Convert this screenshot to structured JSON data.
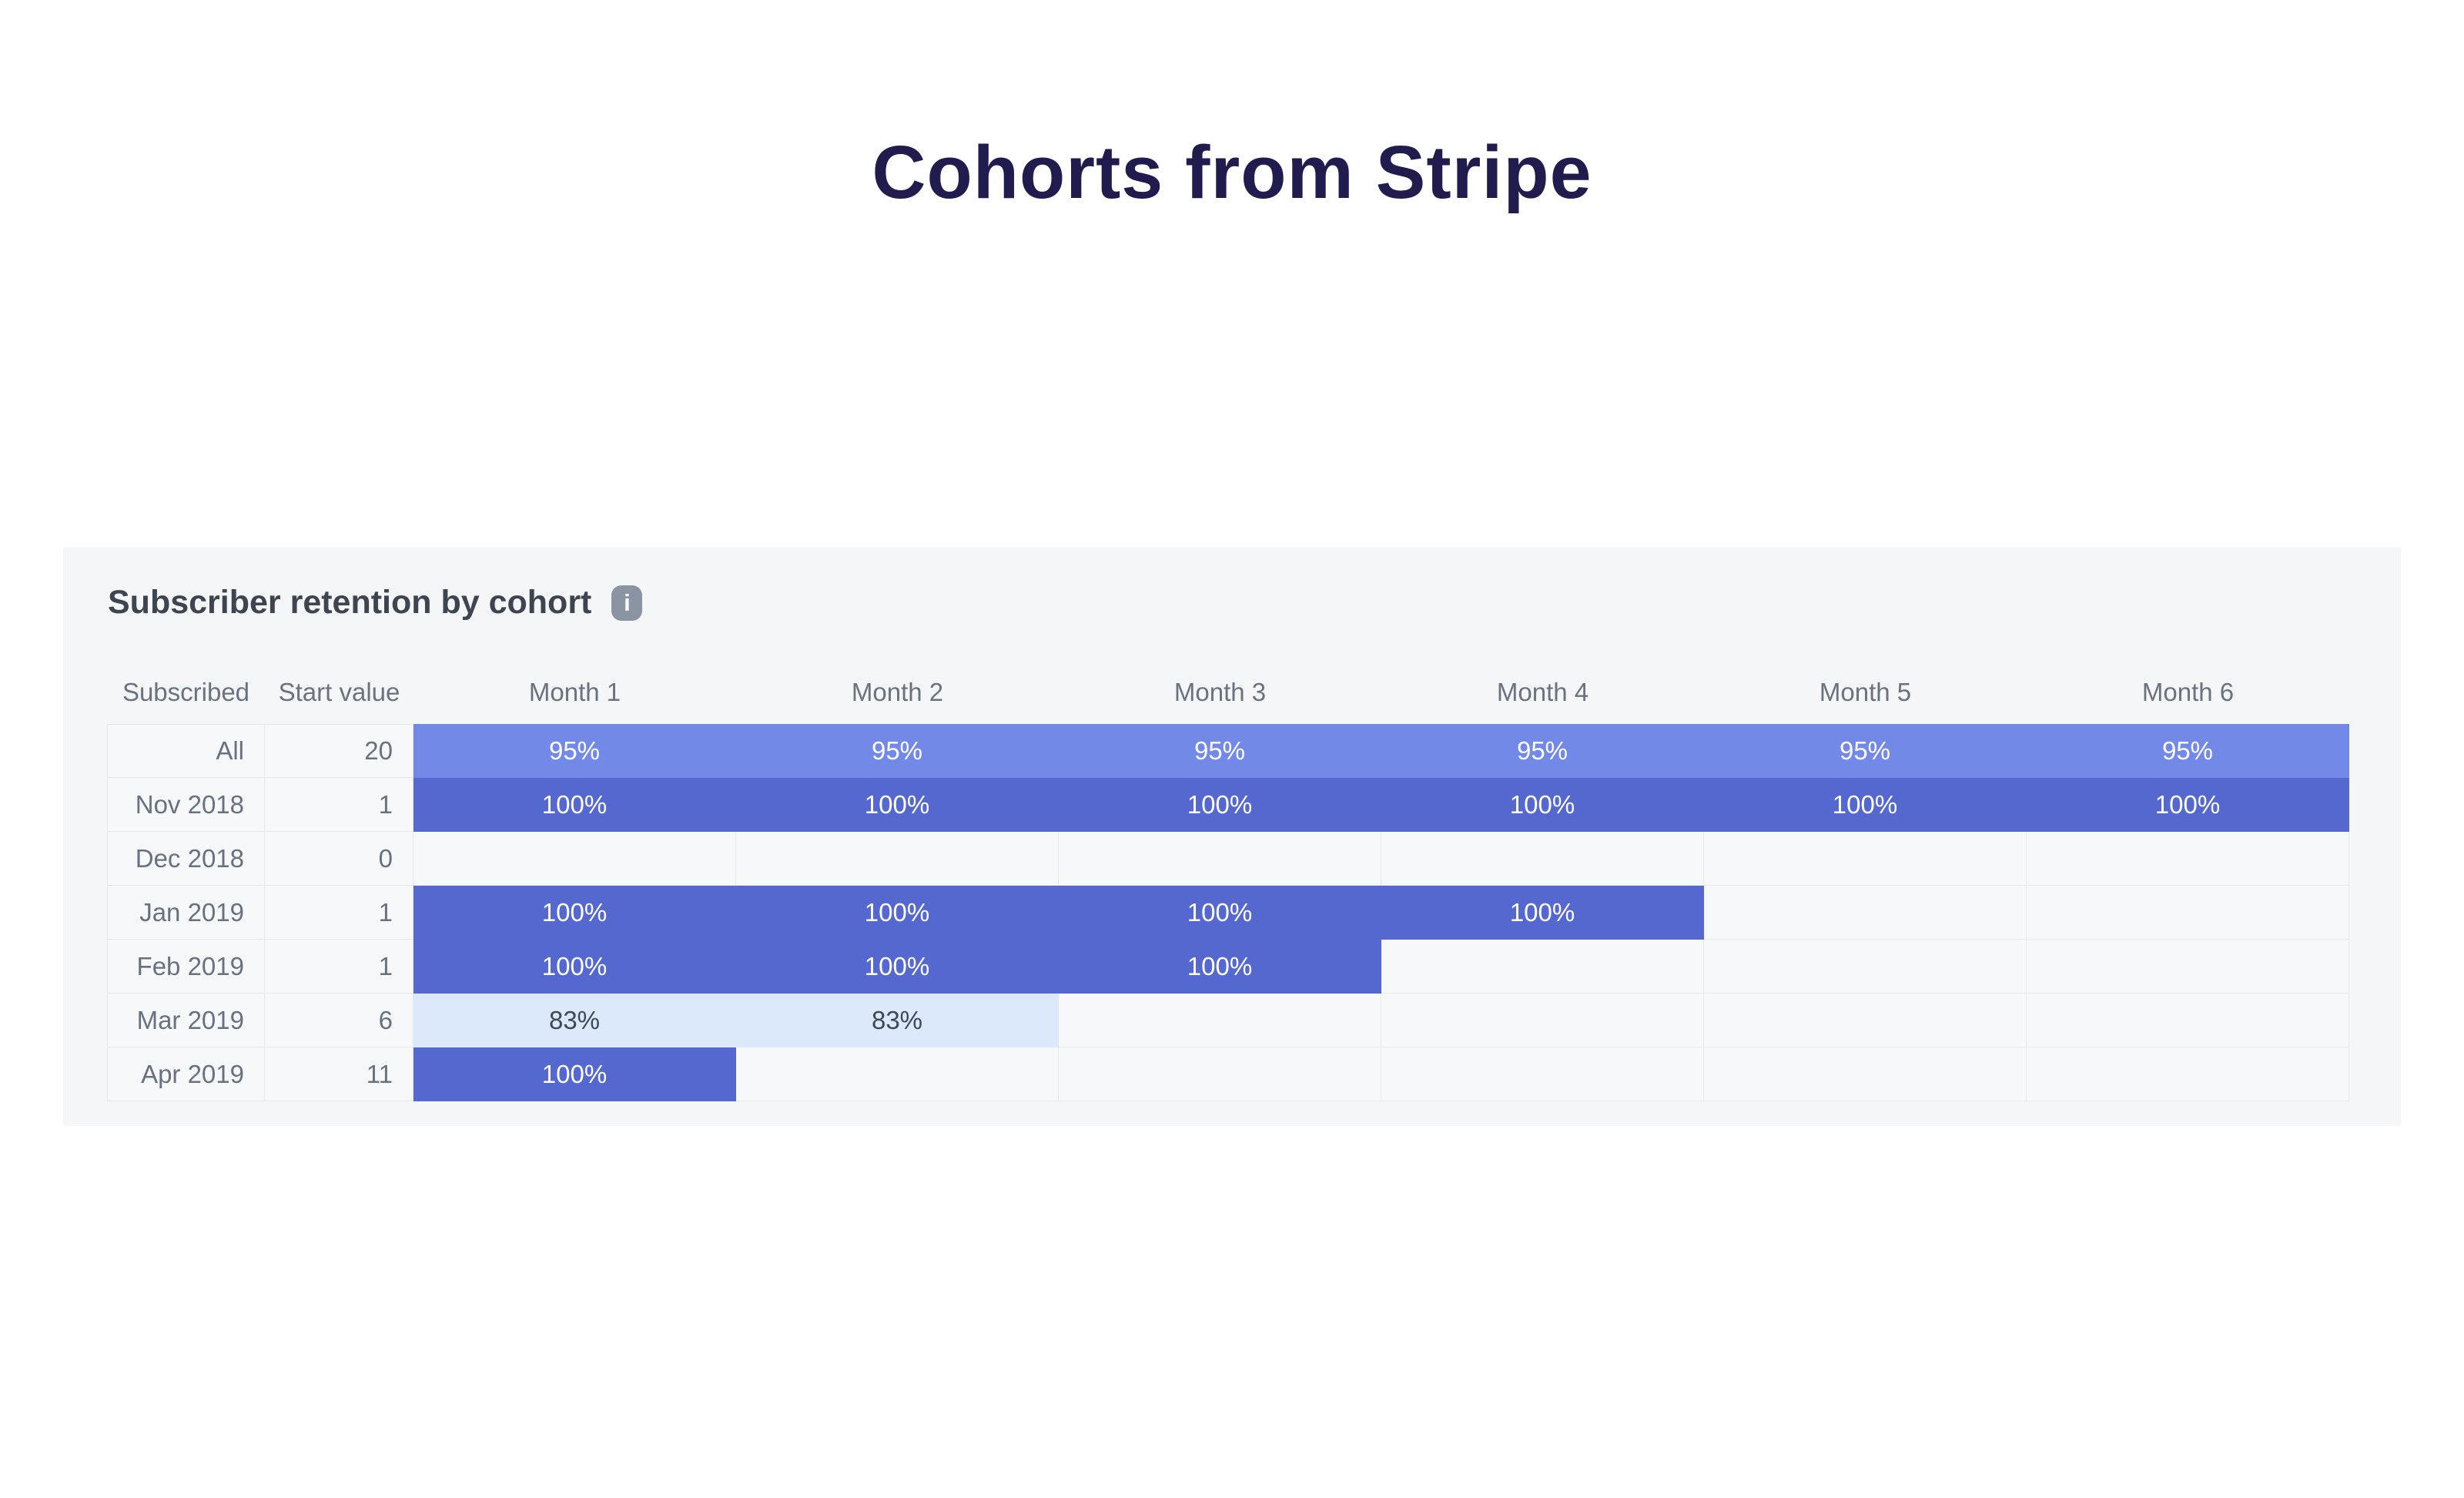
{
  "page": {
    "title": "Cohorts from Stripe"
  },
  "card": {
    "heading": "Subscriber retention by cohort",
    "info_icon_glyph": "i"
  },
  "table": {
    "columns": [
      "Subscribed",
      "Start value",
      "Month 1",
      "Month 2",
      "Month 3",
      "Month 4",
      "Month 5",
      "Month 6"
    ],
    "rows": [
      {
        "label": "All",
        "start": "20",
        "cells": [
          {
            "value": "95%",
            "type": "medium"
          },
          {
            "value": "95%",
            "type": "medium"
          },
          {
            "value": "95%",
            "type": "medium"
          },
          {
            "value": "95%",
            "type": "medium"
          },
          {
            "value": "95%",
            "type": "medium"
          },
          {
            "value": "95%",
            "type": "medium"
          }
        ]
      },
      {
        "label": "Nov 2018",
        "start": "1",
        "cells": [
          {
            "value": "100%",
            "type": "full"
          },
          {
            "value": "100%",
            "type": "full"
          },
          {
            "value": "100%",
            "type": "full"
          },
          {
            "value": "100%",
            "type": "full"
          },
          {
            "value": "100%",
            "type": "full"
          },
          {
            "value": "100%",
            "type": "full"
          }
        ]
      },
      {
        "label": "Dec 2018",
        "start": "0",
        "cells": [
          {
            "value": "",
            "type": "empty"
          },
          {
            "value": "",
            "type": "empty"
          },
          {
            "value": "",
            "type": "empty"
          },
          {
            "value": "",
            "type": "empty"
          },
          {
            "value": "",
            "type": "empty"
          },
          {
            "value": "",
            "type": "empty"
          }
        ]
      },
      {
        "label": "Jan 2019",
        "start": "1",
        "cells": [
          {
            "value": "100%",
            "type": "full"
          },
          {
            "value": "100%",
            "type": "full"
          },
          {
            "value": "100%",
            "type": "full"
          },
          {
            "value": "100%",
            "type": "full"
          },
          {
            "value": "",
            "type": "empty"
          },
          {
            "value": "",
            "type": "empty"
          }
        ]
      },
      {
        "label": "Feb 2019",
        "start": "1",
        "cells": [
          {
            "value": "100%",
            "type": "full"
          },
          {
            "value": "100%",
            "type": "full"
          },
          {
            "value": "100%",
            "type": "full"
          },
          {
            "value": "",
            "type": "empty"
          },
          {
            "value": "",
            "type": "empty"
          },
          {
            "value": "",
            "type": "empty"
          }
        ]
      },
      {
        "label": "Mar 2019",
        "start": "6",
        "cells": [
          {
            "value": "83%",
            "type": "low"
          },
          {
            "value": "83%",
            "type": "low"
          },
          {
            "value": "",
            "type": "empty"
          },
          {
            "value": "",
            "type": "empty"
          },
          {
            "value": "",
            "type": "empty"
          },
          {
            "value": "",
            "type": "empty"
          }
        ]
      },
      {
        "label": "Apr 2019",
        "start": "11",
        "cells": [
          {
            "value": "100%",
            "type": "full"
          },
          {
            "value": "",
            "type": "empty"
          },
          {
            "value": "",
            "type": "empty"
          },
          {
            "value": "",
            "type": "empty"
          },
          {
            "value": "",
            "type": "empty"
          },
          {
            "value": "",
            "type": "empty"
          }
        ]
      }
    ]
  },
  "colors": {
    "title_text": "#211c4e",
    "card_background": "#f5f6f8",
    "cell_background": "#f7f8fa",
    "cell_border": "#e3e8ee",
    "retention_all": "#7389e8",
    "retention_full": "#5568d0",
    "retention_low": "#dbe9fb",
    "heading_text": "#3f4550",
    "muted_text": "#6a7280",
    "info_icon_background": "#8b94a3"
  },
  "chart_data": {
    "type": "heatmap",
    "title": "Subscriber retention by cohort",
    "row_labels": [
      "All",
      "Nov 2018",
      "Dec 2018",
      "Jan 2019",
      "Feb 2019",
      "Mar 2019",
      "Apr 2019"
    ],
    "start_values": [
      20,
      1,
      0,
      1,
      1,
      6,
      11
    ],
    "columns": [
      "Month 1",
      "Month 2",
      "Month 3",
      "Month 4",
      "Month 5",
      "Month 6"
    ],
    "values_pct": [
      [
        95,
        95,
        95,
        95,
        95,
        95
      ],
      [
        100,
        100,
        100,
        100,
        100,
        100
      ],
      [
        null,
        null,
        null,
        null,
        null,
        null
      ],
      [
        100,
        100,
        100,
        100,
        null,
        null
      ],
      [
        100,
        100,
        100,
        null,
        null,
        null
      ],
      [
        83,
        83,
        null,
        null,
        null,
        null
      ],
      [
        100,
        null,
        null,
        null,
        null,
        null
      ]
    ],
    "legend_position": "none",
    "grid": true
  }
}
